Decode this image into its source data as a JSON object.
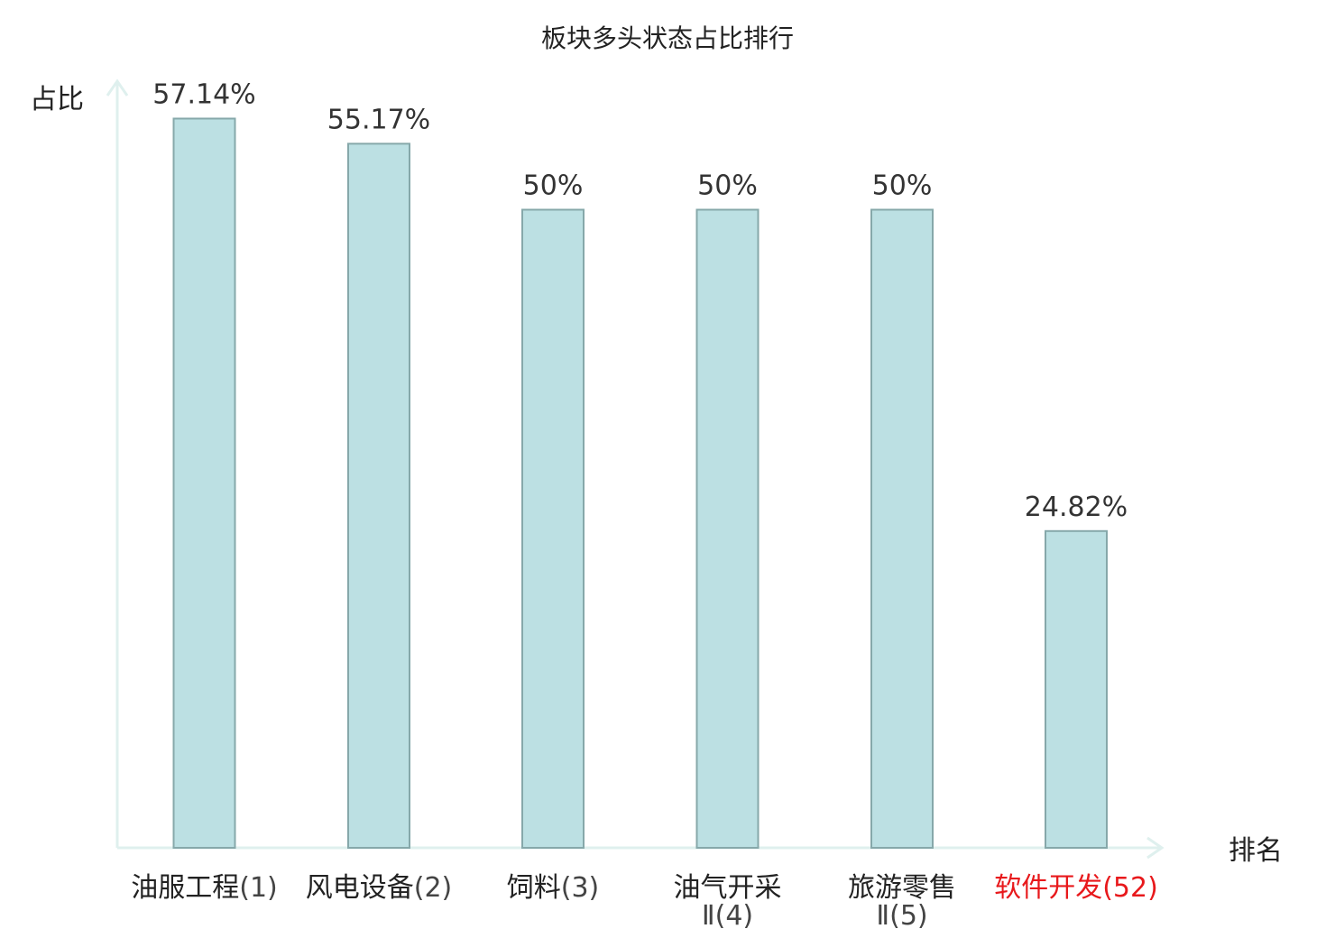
{
  "chart_data": {
    "type": "bar",
    "title": "板块多头状态占比排行",
    "ylabel": "占比",
    "xlabel": "排名",
    "ylim": [
      0,
      60
    ],
    "grid": false,
    "categories": [
      {
        "name": "油服工程",
        "rank": "(1)",
        "highlight": false
      },
      {
        "name": "风电设备",
        "rank": "(2)",
        "highlight": false
      },
      {
        "name": "饲料",
        "rank": "(3)",
        "highlight": false
      },
      {
        "name": "油气开采",
        "name_line2": "Ⅱ",
        "rank": "(4)",
        "highlight": false
      },
      {
        "name": "旅游零售",
        "name_line2": "Ⅱ",
        "rank": "(5)",
        "highlight": false
      },
      {
        "name": "软件开发",
        "rank": "(52)",
        "highlight": true
      }
    ],
    "values": [
      57.14,
      55.17,
      50,
      50,
      50,
      24.82
    ],
    "value_labels": [
      "57.14%",
      "55.17%",
      "50%",
      "50%",
      "50%",
      "24.82%"
    ]
  },
  "colors": {
    "bar_fill": "#bce0e3",
    "bar_stroke": "#86a8aa",
    "axis": "#dff0ee",
    "highlight": "#e8191c",
    "rank_text": "#444444"
  }
}
